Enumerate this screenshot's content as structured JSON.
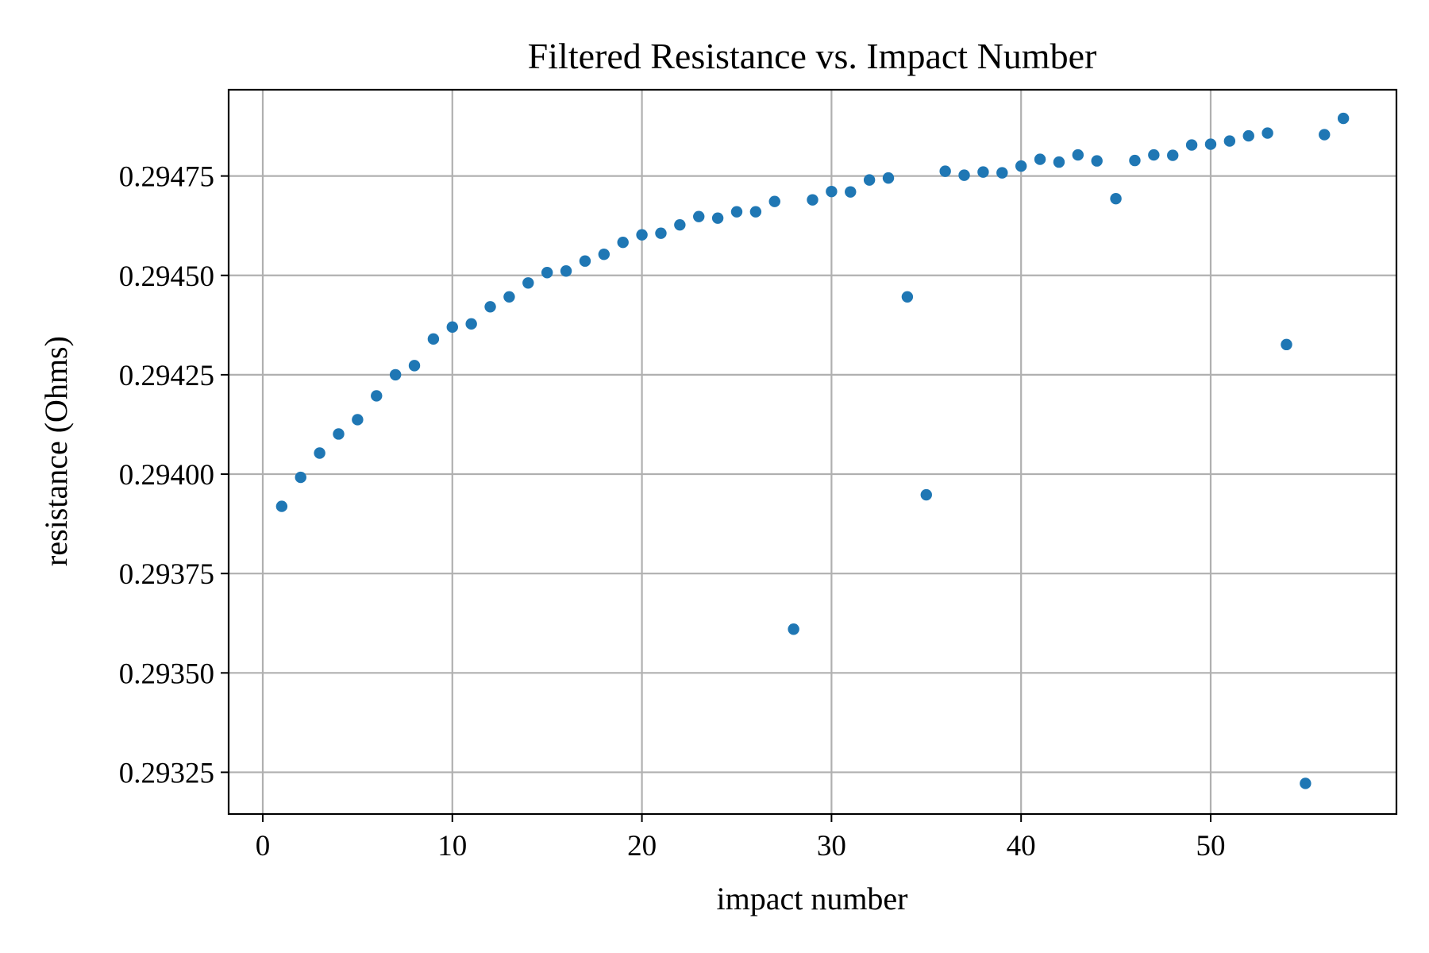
{
  "chart_data": {
    "type": "scatter",
    "title": "Filtered Resistance vs. Impact Number",
    "xlabel": "impact number",
    "ylabel": "resistance (Ohms)",
    "xlim": [
      -1.8,
      59.8
    ],
    "ylim": [
      0.293145,
      0.294967
    ],
    "xticks": [
      0,
      10,
      20,
      30,
      40,
      50
    ],
    "xtick_labels": [
      "0",
      "10",
      "20",
      "30",
      "40",
      "50"
    ],
    "yticks": [
      0.29325,
      0.2935,
      0.29375,
      0.294,
      0.29425,
      0.2945,
      0.29475
    ],
    "ytick_labels": [
      "0.29325",
      "0.29350",
      "0.29375",
      "0.29400",
      "0.29425",
      "0.29450",
      "0.29475"
    ],
    "grid": true,
    "marker_color": "#1f77b4",
    "series": [
      {
        "x": [
          1,
          2,
          3,
          4,
          5,
          6,
          7,
          8,
          9,
          10,
          11,
          12,
          13,
          14,
          15,
          16,
          17,
          18,
          19,
          20,
          21,
          22,
          23,
          24,
          25,
          26,
          27,
          28,
          29,
          30,
          31,
          32,
          33,
          34,
          35,
          36,
          37,
          38,
          39,
          40,
          41,
          42,
          43,
          44,
          45,
          46,
          47,
          48,
          49,
          50,
          51,
          52,
          53,
          54,
          55,
          56,
          57
        ],
        "y": [
          0.293919,
          0.293992,
          0.294053,
          0.294101,
          0.294137,
          0.294197,
          0.29425,
          0.294273,
          0.29434,
          0.29437,
          0.294378,
          0.294421,
          0.294446,
          0.294481,
          0.294507,
          0.294511,
          0.294536,
          0.294553,
          0.294583,
          0.294602,
          0.294606,
          0.294627,
          0.294648,
          0.294644,
          0.29466,
          0.29466,
          0.294686,
          0.29361,
          0.29469,
          0.294711,
          0.29471,
          0.29474,
          0.294745,
          0.294446,
          0.293948,
          0.294762,
          0.294752,
          0.29476,
          0.294758,
          0.294775,
          0.294792,
          0.294785,
          0.294803,
          0.294788,
          0.294693,
          0.294789,
          0.294803,
          0.294802,
          0.294828,
          0.29483,
          0.294838,
          0.294851,
          0.294858,
          0.294326,
          0.293222,
          0.294854,
          0.294895
        ]
      }
    ]
  }
}
